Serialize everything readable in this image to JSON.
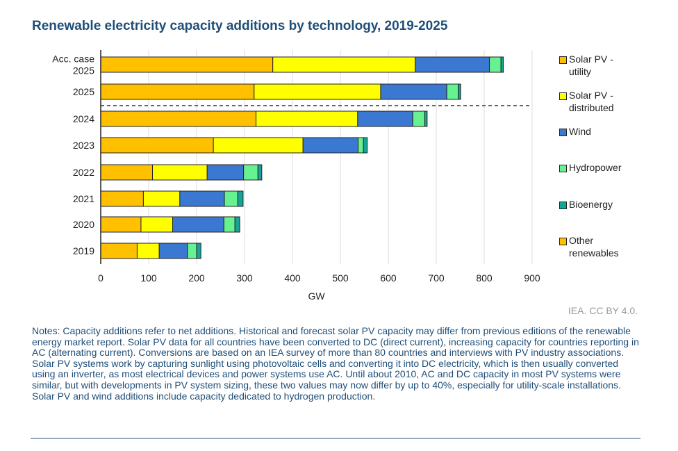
{
  "title": "Renewable electricity capacity additions by technology, 2019-2025",
  "credit": "IEA. CC BY 4.0.",
  "notes": "Notes: Capacity additions refer to net additions. Historical and forecast solar PV capacity may differ from previous editions of the renewable energy market report. Solar PV data for all countries have been converted to DC (direct current), increasing capacity for countries reporting in AC (alternating current). Conversions are based on an IEA survey of more than 80 countries and interviews with PV industry associations. Solar PV systems work by capturing sunlight using photovoltaic cells and converting it into DC electricity, which is then usually converted using an inverter, as most electrical devices and power systems use AC. Until about 2010, AC and DC capacity in most PV systems were similar, but with developments in PV system sizing, these two values may now differ by up to 40%, especially for utility-scale installations. Solar PV and wind additions include capacity dedicated to hydrogen production.",
  "chart_data": {
    "type": "bar",
    "orientation": "horizontal",
    "stacked": true,
    "title": "Renewable electricity capacity additions by technology, 2019-2025",
    "xlabel": "GW",
    "ylabel": "",
    "xlim": [
      0,
      900
    ],
    "xticks": [
      0,
      100,
      200,
      300,
      400,
      500,
      600,
      700,
      800,
      900
    ],
    "grid": "vertical",
    "legend": "right",
    "categories": [
      "Acc. case 2025",
      "2025",
      "2024",
      "2023",
      "2022",
      "2021",
      "2020",
      "2019"
    ],
    "category_lines": [
      [
        "Acc. case",
        "2025"
      ],
      [
        "2025"
      ],
      [
        "2024"
      ],
      [
        "2023"
      ],
      [
        "2022"
      ],
      [
        "2021"
      ],
      [
        "2020"
      ],
      [
        "2019"
      ]
    ],
    "series": [
      {
        "name": "Solar PV - utility",
        "legend_lines": [
          "Solar PV -",
          "utility"
        ],
        "color": "#FFC000",
        "values": [
          359,
          320,
          324,
          235,
          108,
          89,
          84,
          76
        ]
      },
      {
        "name": "Solar PV - distributed",
        "legend_lines": [
          "Solar PV -",
          "distributed"
        ],
        "color": "#FFFF00",
        "values": [
          297,
          264,
          212,
          187,
          114,
          76,
          66,
          46
        ]
      },
      {
        "name": "Wind",
        "legend_lines": [
          "Wind"
        ],
        "color": "#3A78D2",
        "values": [
          155,
          138,
          115,
          115,
          76,
          93,
          107,
          59
        ]
      },
      {
        "name": "Hydropower",
        "legend_lines": [
          "Hydropower"
        ],
        "color": "#66F291",
        "values": [
          24,
          24,
          25,
          11,
          30,
          28,
          23,
          19
        ]
      },
      {
        "name": "Bioenergy",
        "legend_lines": [
          "Bioenergy"
        ],
        "color": "#16A398",
        "values": [
          5,
          5,
          5,
          8,
          8,
          11,
          10,
          9
        ]
      },
      {
        "name": "Other renewables",
        "legend_lines": [
          "Other",
          "renewables"
        ],
        "color": "#FFC000",
        "values": [
          0,
          0,
          0,
          0,
          0,
          0,
          0,
          0
        ]
      }
    ]
  }
}
